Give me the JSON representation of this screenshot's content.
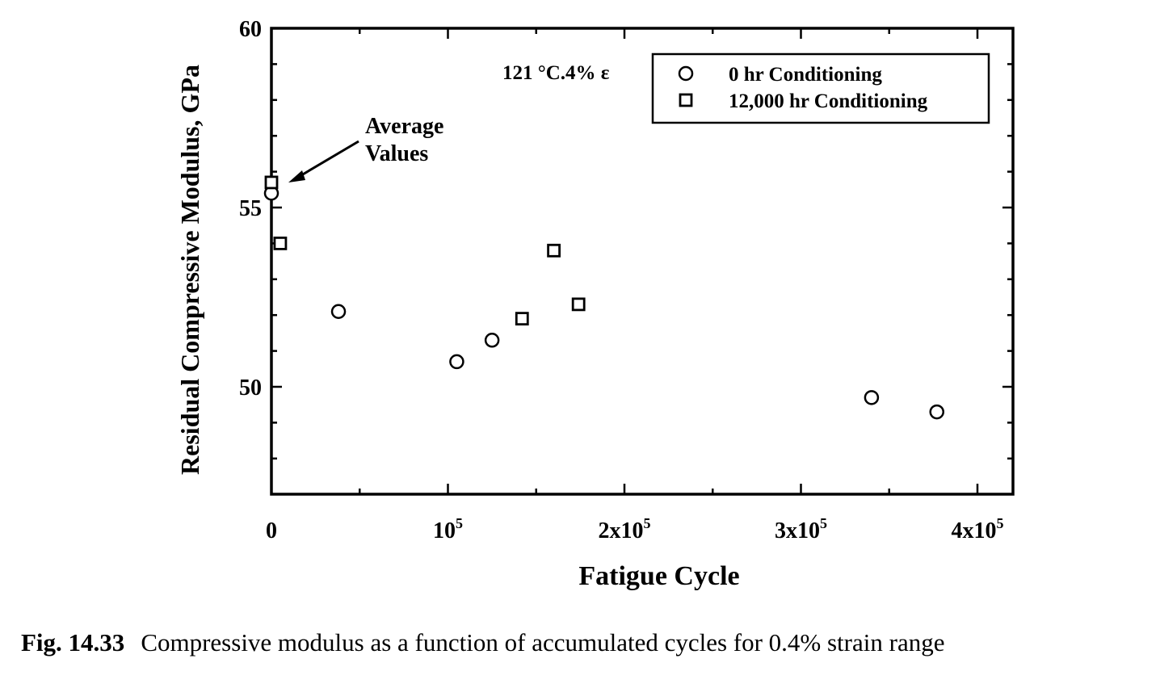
{
  "caption": {
    "number": "Fig. 14.33",
    "text": "Compressive modulus as a function of accumulated cycles for 0.4% strain range"
  },
  "chart_data": {
    "type": "scatter",
    "xlabel": "Fatigue Cycle",
    "ylabel": "Residual Compressive Modulus, GPa",
    "xlim": [
      0,
      420000
    ],
    "ylim": [
      47,
      60
    ],
    "x_ticks": [
      {
        "value": 0,
        "base": "0",
        "exp": ""
      },
      {
        "value": 100000,
        "base": "10",
        "exp": "5"
      },
      {
        "value": 200000,
        "base": "2x10",
        "exp": "5"
      },
      {
        "value": 300000,
        "base": "3x10",
        "exp": "5"
      },
      {
        "value": 400000,
        "base": "4x10",
        "exp": "5"
      }
    ],
    "y_ticks": [
      50,
      55,
      60
    ],
    "annotation_conditions": "121 °C.4% ε",
    "annotation_average": [
      "Average",
      "Values"
    ],
    "legend_position": "top-right",
    "grid": false,
    "series": [
      {
        "name": "0 hr Conditioning",
        "marker": "circle",
        "points": [
          {
            "x": 0,
            "y": 55.4
          },
          {
            "x": 38000,
            "y": 52.1
          },
          {
            "x": 105000,
            "y": 50.7
          },
          {
            "x": 125000,
            "y": 51.3
          },
          {
            "x": 340000,
            "y": 49.7
          },
          {
            "x": 377000,
            "y": 49.3
          }
        ]
      },
      {
        "name": "12,000 hr Conditioning",
        "marker": "square",
        "points": [
          {
            "x": 0,
            "y": 55.7
          },
          {
            "x": 5000,
            "y": 54.0
          },
          {
            "x": 142000,
            "y": 51.9
          },
          {
            "x": 160000,
            "y": 53.8
          },
          {
            "x": 174000,
            "y": 52.3
          }
        ]
      }
    ]
  }
}
